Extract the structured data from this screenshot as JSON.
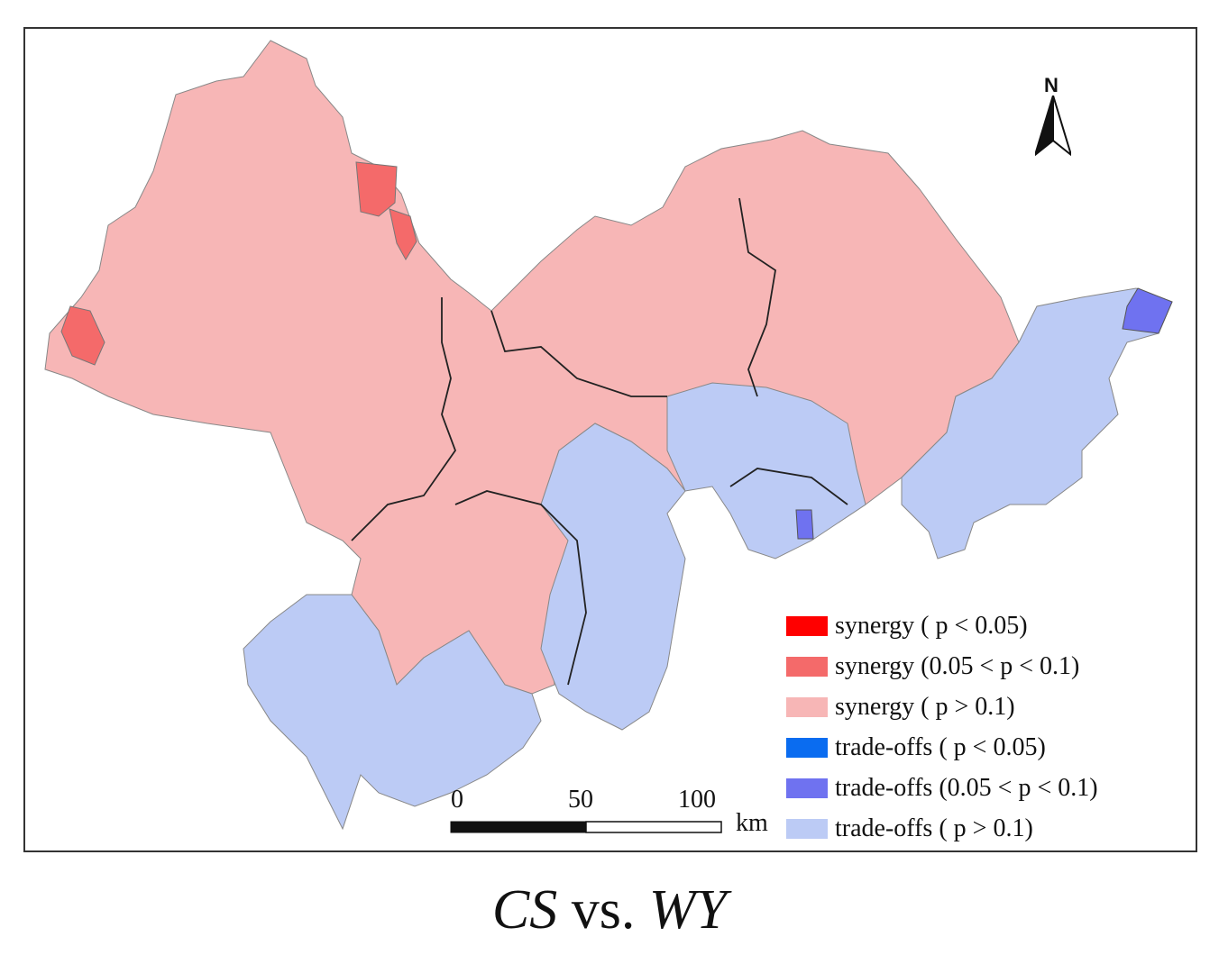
{
  "title": {
    "var_a": "CS",
    "vs": "vs.",
    "var_b": "WY"
  },
  "north_arrow": {
    "label": "N"
  },
  "scale_bar": {
    "ticks": [
      "0",
      "50",
      "100"
    ],
    "unit": "km"
  },
  "legend": [
    {
      "label": "synergy ( p < 0.05)",
      "color": "#ff0000"
    },
    {
      "label": "synergy (0.05 < p < 0.1)",
      "color": "#f46a6a"
    },
    {
      "label": "synergy ( p > 0.1)",
      "color": "#f7b6b6"
    },
    {
      "label": "trade-offs ( p < 0.05)",
      "color": "#0a6cf0"
    },
    {
      "label": "trade-offs (0.05 < p < 0.1)",
      "color": "#6f72f0"
    },
    {
      "label": "trade-offs ( p > 0.1)",
      "color": "#bccbf5"
    }
  ],
  "colors": {
    "synergy_high": "#ff0000",
    "synergy_mid": "#f46a6a",
    "synergy_low": "#f7b6b6",
    "tradeoff_high": "#0a6cf0",
    "tradeoff_mid": "#6f72f0",
    "tradeoff_low": "#bccbf5"
  }
}
